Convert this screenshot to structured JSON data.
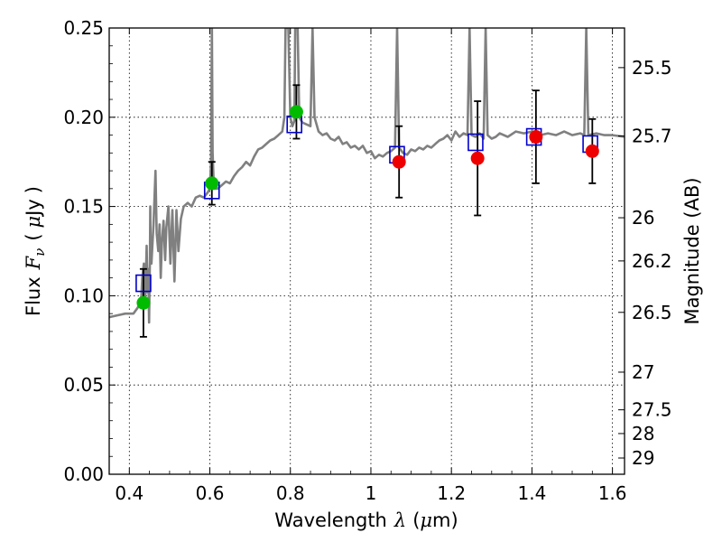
{
  "chart_data": {
    "type": "scatter",
    "title": "",
    "xlabel": {
      "prefix": "Wavelength",
      "symbol": "λ",
      "unit_open": "(",
      "unit_mu": "μ",
      "unit_rest": "m)"
    },
    "ylabel": {
      "prefix": "Flux",
      "symbol": "F",
      "subscript": "ν",
      "unit_open": "(",
      "unit_mu": "μ",
      "unit_rest": "Jy",
      "unit_close": ")"
    },
    "ylabel_right": "Magnitude (AB)",
    "xlim": [
      0.35,
      1.63
    ],
    "ylim": [
      0.0,
      0.25
    ],
    "xticks": [
      0.4,
      0.6,
      0.8,
      1.0,
      1.2,
      1.4,
      1.6
    ],
    "xtick_labels": [
      "0.4",
      "0.6",
      "0.8",
      "1",
      "1.2",
      "1.4",
      "1.6"
    ],
    "yticks": [
      0.0,
      0.05,
      0.1,
      0.15,
      0.2,
      0.25
    ],
    "ytick_labels": [
      "0.00",
      "0.05",
      "0.10",
      "0.15",
      "0.20",
      "0.25"
    ],
    "right_ticks": [
      {
        "label": "25.5",
        "flux": 0.2278
      },
      {
        "label": "25.7",
        "flux": 0.1895
      },
      {
        "label": "26",
        "flux": 0.1437
      },
      {
        "label": "26.2",
        "flux": 0.1195
      },
      {
        "label": "26.5",
        "flux": 0.0907
      },
      {
        "label": "27",
        "flux": 0.0572
      },
      {
        "label": "27.5",
        "flux": 0.0361
      },
      {
        "label": "28",
        "flux": 0.0228
      },
      {
        "label": "29",
        "flux": 0.0091
      }
    ],
    "grid": true,
    "colors": {
      "spectrum": "#808080",
      "model_box": "#0000cc",
      "detection_a": "#00bb00",
      "detection_b": "#ee0000",
      "errorbar": "#000000"
    },
    "series": [
      {
        "kind": "model-boxes",
        "points": [
          {
            "x": 0.435,
            "y": 0.107
          },
          {
            "x": 0.605,
            "y": 0.159
          },
          {
            "x": 0.81,
            "y": 0.196
          },
          {
            "x": 1.065,
            "y": 0.179
          },
          {
            "x": 1.26,
            "y": 0.186
          },
          {
            "x": 1.405,
            "y": 0.189
          },
          {
            "x": 1.545,
            "y": 0.185
          }
        ]
      },
      {
        "kind": "detections",
        "points": [
          {
            "x": 0.435,
            "y": 0.096,
            "err": 0.019,
            "color": "green"
          },
          {
            "x": 0.605,
            "y": 0.163,
            "err": 0.012,
            "color": "green"
          },
          {
            "x": 0.815,
            "y": 0.203,
            "err": 0.015,
            "color": "green"
          },
          {
            "x": 1.07,
            "y": 0.175,
            "err": 0.02,
            "color": "red"
          },
          {
            "x": 1.265,
            "y": 0.177,
            "err": 0.032,
            "color": "red"
          },
          {
            "x": 1.41,
            "y": 0.189,
            "err": 0.026,
            "color": "red"
          },
          {
            "x": 1.55,
            "y": 0.181,
            "err": 0.018,
            "color": "red"
          }
        ]
      },
      {
        "kind": "spectrum",
        "points": [
          [
            0.35,
            0.088
          ],
          [
            0.37,
            0.089
          ],
          [
            0.39,
            0.09
          ],
          [
            0.41,
            0.09
          ],
          [
            0.42,
            0.093
          ],
          [
            0.425,
            0.095
          ],
          [
            0.43,
            0.1
          ],
          [
            0.432,
            0.11
          ],
          [
            0.436,
            0.118
          ],
          [
            0.44,
            0.1
          ],
          [
            0.443,
            0.128
          ],
          [
            0.445,
            0.102
          ],
          [
            0.447,
            0.115
          ],
          [
            0.449,
            0.085
          ],
          [
            0.451,
            0.12
          ],
          [
            0.452,
            0.15
          ],
          [
            0.453,
            0.125
          ],
          [
            0.455,
            0.118
          ],
          [
            0.46,
            0.14
          ],
          [
            0.465,
            0.17
          ],
          [
            0.468,
            0.135
          ],
          [
            0.472,
            0.125
          ],
          [
            0.475,
            0.14
          ],
          [
            0.478,
            0.11
          ],
          [
            0.481,
            0.13
          ],
          [
            0.485,
            0.142
          ],
          [
            0.489,
            0.12
          ],
          [
            0.492,
            0.138
          ],
          [
            0.497,
            0.15
          ],
          [
            0.502,
            0.118
          ],
          [
            0.507,
            0.148
          ],
          [
            0.512,
            0.108
          ],
          [
            0.517,
            0.148
          ],
          [
            0.522,
            0.125
          ],
          [
            0.528,
            0.143
          ],
          [
            0.535,
            0.15
          ],
          [
            0.545,
            0.152
          ],
          [
            0.555,
            0.15
          ],
          [
            0.565,
            0.155
          ],
          [
            0.575,
            0.156
          ],
          [
            0.585,
            0.155
          ],
          [
            0.595,
            0.158
          ],
          [
            0.6,
            0.16
          ],
          [
            0.603,
            0.175
          ],
          [
            0.605,
            0.25
          ],
          [
            0.607,
            0.18
          ],
          [
            0.61,
            0.16
          ],
          [
            0.62,
            0.16
          ],
          [
            0.63,
            0.162
          ],
          [
            0.64,
            0.164
          ],
          [
            0.65,
            0.163
          ],
          [
            0.66,
            0.167
          ],
          [
            0.67,
            0.17
          ],
          [
            0.68,
            0.172
          ],
          [
            0.69,
            0.175
          ],
          [
            0.7,
            0.173
          ],
          [
            0.71,
            0.178
          ],
          [
            0.72,
            0.182
          ],
          [
            0.73,
            0.183
          ],
          [
            0.74,
            0.185
          ],
          [
            0.75,
            0.187
          ],
          [
            0.76,
            0.188
          ],
          [
            0.77,
            0.19
          ],
          [
            0.78,
            0.192
          ],
          [
            0.785,
            0.2
          ],
          [
            0.788,
            0.25
          ],
          [
            0.795,
            0.25
          ],
          [
            0.8,
            0.2
          ],
          [
            0.805,
            0.195
          ],
          [
            0.81,
            0.198
          ],
          [
            0.812,
            0.25
          ],
          [
            0.818,
            0.25
          ],
          [
            0.822,
            0.2
          ],
          [
            0.83,
            0.197
          ],
          [
            0.84,
            0.196
          ],
          [
            0.85,
            0.195
          ],
          [
            0.855,
            0.25
          ],
          [
            0.86,
            0.2
          ],
          [
            0.87,
            0.192
          ],
          [
            0.88,
            0.19
          ],
          [
            0.89,
            0.191
          ],
          [
            0.9,
            0.188
          ],
          [
            0.91,
            0.187
          ],
          [
            0.92,
            0.189
          ],
          [
            0.93,
            0.185
          ],
          [
            0.94,
            0.186
          ],
          [
            0.95,
            0.183
          ],
          [
            0.96,
            0.184
          ],
          [
            0.97,
            0.182
          ],
          [
            0.98,
            0.184
          ],
          [
            0.99,
            0.18
          ],
          [
            1.0,
            0.181
          ],
          [
            1.01,
            0.177
          ],
          [
            1.02,
            0.179
          ],
          [
            1.03,
            0.178
          ],
          [
            1.04,
            0.18
          ],
          [
            1.05,
            0.181
          ],
          [
            1.06,
            0.183
          ],
          [
            1.065,
            0.25
          ],
          [
            1.07,
            0.183
          ],
          [
            1.08,
            0.18
          ],
          [
            1.09,
            0.179
          ],
          [
            1.1,
            0.182
          ],
          [
            1.11,
            0.181
          ],
          [
            1.12,
            0.183
          ],
          [
            1.13,
            0.182
          ],
          [
            1.14,
            0.184
          ],
          [
            1.15,
            0.183
          ],
          [
            1.16,
            0.185
          ],
          [
            1.17,
            0.187
          ],
          [
            1.18,
            0.188
          ],
          [
            1.19,
            0.19
          ],
          [
            1.2,
            0.187
          ],
          [
            1.21,
            0.192
          ],
          [
            1.22,
            0.189
          ],
          [
            1.23,
            0.191
          ],
          [
            1.24,
            0.19
          ],
          [
            1.245,
            0.25
          ],
          [
            1.25,
            0.19
          ],
          [
            1.26,
            0.189
          ],
          [
            1.27,
            0.191
          ],
          [
            1.28,
            0.188
          ],
          [
            1.285,
            0.25
          ],
          [
            1.29,
            0.19
          ],
          [
            1.3,
            0.188
          ],
          [
            1.31,
            0.189
          ],
          [
            1.32,
            0.191
          ],
          [
            1.34,
            0.189
          ],
          [
            1.36,
            0.192
          ],
          [
            1.38,
            0.191
          ],
          [
            1.4,
            0.192
          ],
          [
            1.42,
            0.19
          ],
          [
            1.44,
            0.191
          ],
          [
            1.46,
            0.19
          ],
          [
            1.48,
            0.192
          ],
          [
            1.5,
            0.19
          ],
          [
            1.52,
            0.191
          ],
          [
            1.53,
            0.19
          ],
          [
            1.535,
            0.25
          ],
          [
            1.54,
            0.19
          ],
          [
            1.56,
            0.191
          ],
          [
            1.58,
            0.19
          ],
          [
            1.6,
            0.19
          ],
          [
            1.63,
            0.189
          ]
        ]
      }
    ]
  }
}
